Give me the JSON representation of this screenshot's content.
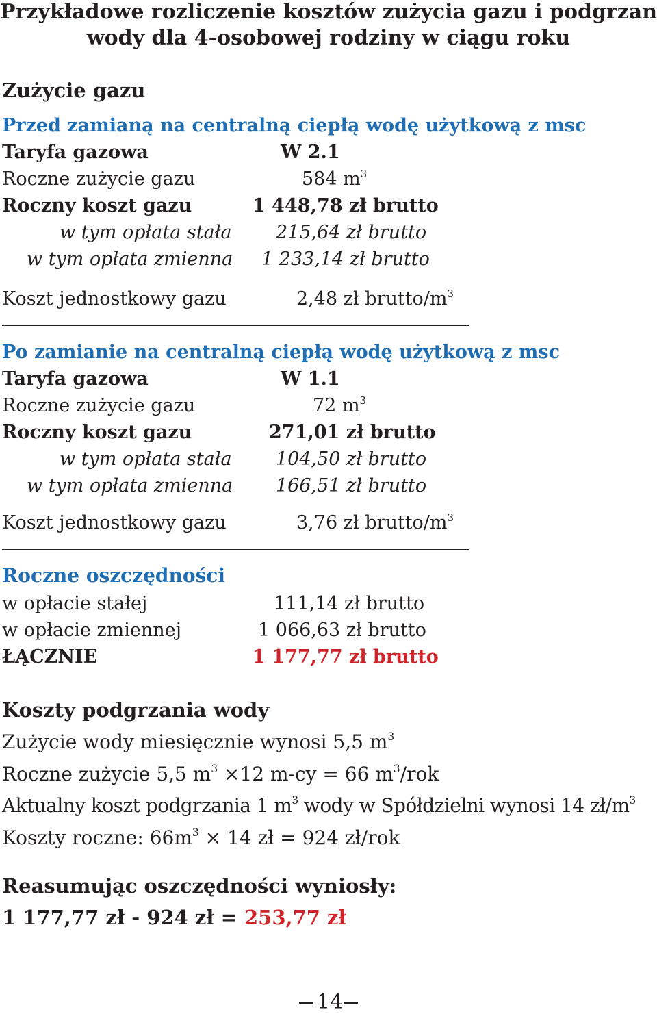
{
  "title_line1": "Przykładowe rozliczenie kosztów zużycia gazu i podgrzania",
  "title_line2": "wody dla 4-osobowej rodziny w ciągu roku",
  "gas_heading": "Zużycie gazu",
  "before": {
    "heading": "Przed zamianą na centralną ciepłą wodę użytkową z msc",
    "tariff_label": "Taryfa gazowa",
    "tariff_value": "W 2.1",
    "usage_label": "Roczne zużycie gazu",
    "usage_value": "584 m",
    "cost_label": "Roczny koszt gazu",
    "cost_value": "1 448,78 zł brutto",
    "fixed_label": "w tym opłata stała",
    "fixed_value": "215,64 zł brutto",
    "variable_label": "w tym opłata zmienna",
    "variable_value": "1 233,14 zł brutto",
    "unit_label": "Koszt jednostkowy gazu",
    "unit_value": "2,48 zł brutto/m"
  },
  "after": {
    "heading": "Po zamianie na centralną ciepłą wodę użytkową z msc",
    "tariff_label": "Taryfa gazowa",
    "tariff_value": "W 1.1",
    "usage_label": "Roczne zużycie gazu",
    "usage_value": "72 m",
    "cost_label": "Roczny koszt gazu",
    "cost_value": "271,01 zł brutto",
    "fixed_label": "w tym opłata stała",
    "fixed_value": "104,50 zł brutto",
    "variable_label": "w tym opłata zmienna",
    "variable_value": "166,51 zł brutto",
    "unit_label": "Koszt jednostkowy gazu",
    "unit_value": "3,76 zł brutto/m"
  },
  "savings": {
    "heading": "Roczne oszczędności",
    "fixed_label": "w opłacie stałej",
    "fixed_value": "111,14 zł brutto",
    "variable_label": "w opłacie zmiennej",
    "variable_value": "1 066,63 zł brutto",
    "total_label": "ŁĄCZNIE",
    "total_value": "1 177,77 zł brutto"
  },
  "water": {
    "heading": "Koszty podgrzania wody",
    "line1": "Zużycie wody miesięcznie wynosi 5,5 m",
    "line2_a": "Roczne zużycie 5,5 m",
    "line2_b": " ×12 m-cy = 66 m",
    "line2_c": "/rok",
    "line3_a": "Aktualny koszt podgrzania 1 m",
    "line3_b": " wody w Spółdzielni wynosi 14 zł/m",
    "line4_a": "Koszty roczne: 66m",
    "line4_b": " × 14 zł = 924 zł/rok"
  },
  "summary": {
    "heading": "Reasumując oszczędności wyniosły:",
    "equation": "1 177,77 zł - 924 zł = ",
    "result": "253,77 zł"
  },
  "cube_superscript": "3",
  "page_number": "14",
  "colors": {
    "heading_blue": "#1f6db3",
    "highlight_red": "#d0232a",
    "text": "#231f20"
  }
}
